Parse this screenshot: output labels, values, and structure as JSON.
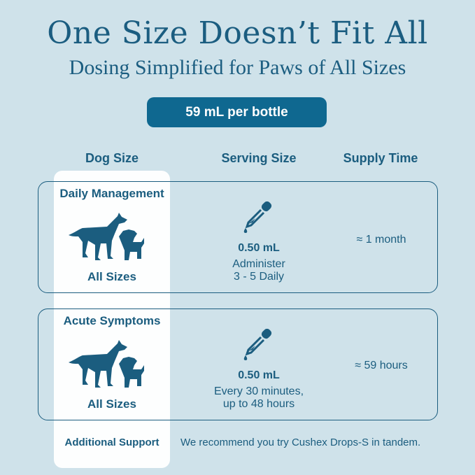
{
  "title": "One Size Doesn’t Fit All",
  "subtitle": "Dosing Simplified for Paws of All Sizes",
  "bottle_label": "59 mL per bottle",
  "headers": {
    "dog_size": "Dog Size",
    "serving_size": "Serving Size",
    "supply_time": "Supply Time"
  },
  "rows": [
    {
      "category": "Daily Management",
      "dog_size": "All Sizes",
      "dose": "0.50 mL",
      "instruction1": "Administer",
      "instruction2": "3 - 5 Daily",
      "supply": "≈ 1 month"
    },
    {
      "category": "Acute Symptoms",
      "dog_size": "All Sizes",
      "dose": "0.50 mL",
      "instruction1": "Every 30 minutes,",
      "instruction2": "up to 48 hours",
      "supply": "≈ 59 hours"
    }
  ],
  "additional": {
    "label": "Additional Support",
    "text": "We recommend you try Cushex Drops-S in tandem."
  },
  "colors": {
    "background": "#cfe2ea",
    "primary": "#1b5d7f",
    "pill": "#0f6890"
  }
}
